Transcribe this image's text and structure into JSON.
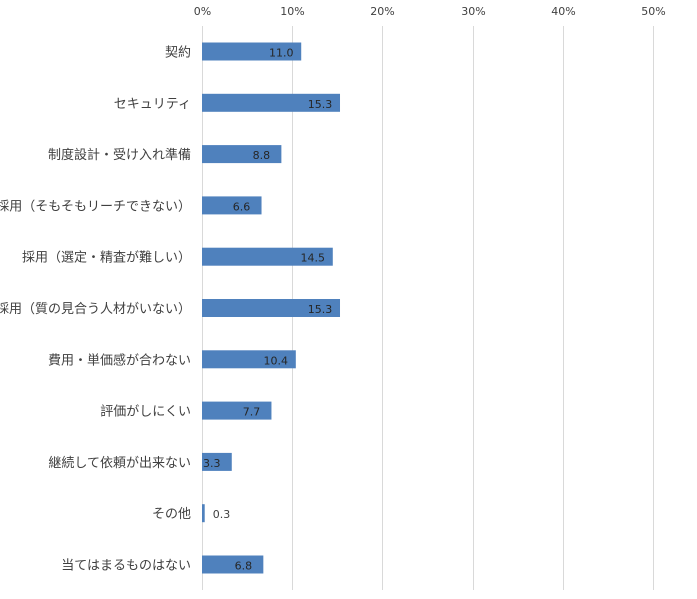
{
  "chart_data": {
    "type": "bar",
    "orientation": "horizontal",
    "categories": [
      "契約",
      "セキュリティ",
      "制度設計・受け入れ準備",
      "採用（そもそもリーチできない）",
      "採用（選定・精査が難しい）",
      "採用（質の見合う人材がいない）",
      "費用・単価感が合わない",
      "評価がしにくい",
      "継続して依頼が出来ない",
      "その他",
      "当てはまるものはない"
    ],
    "values": [
      11.0,
      15.3,
      8.8,
      6.6,
      14.5,
      15.3,
      10.4,
      7.7,
      3.3,
      0.3,
      6.8
    ],
    "data_labels": [
      "11.0",
      "15.3",
      "8.8",
      "6.6",
      "14.5",
      "15.3",
      "10.4",
      "7.7",
      "3.3",
      "0.3",
      "6.8"
    ],
    "xlim": [
      0,
      50
    ],
    "x_ticks": [
      "0%",
      "10%",
      "20%",
      "30%",
      "40%",
      "50%"
    ],
    "x_axis_position": "top",
    "grid": true,
    "legend": "none",
    "title": "",
    "xlabel": "",
    "ylabel": "",
    "colors": {
      "bar": "#4f81bd",
      "grid": "#d9d9d9",
      "text": "#404040",
      "label_inside": "#262626"
    }
  }
}
